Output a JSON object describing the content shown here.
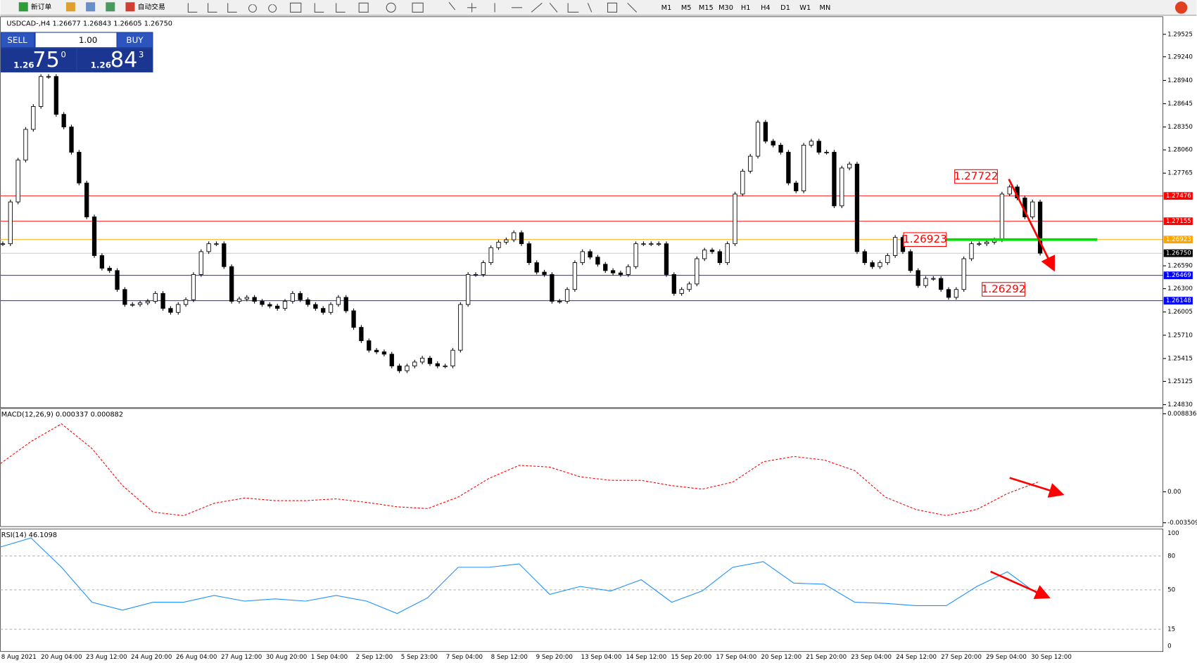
{
  "toolbar": {
    "new_order": "新订单",
    "auto_trade": "自动交易",
    "timeframes": [
      "M1",
      "M5",
      "M15",
      "M30",
      "H1",
      "H4",
      "D1",
      "W1",
      "MN"
    ]
  },
  "trade_panel": {
    "sell": "SELL",
    "lot": "1.00",
    "buy": "BUY",
    "sell_price": {
      "prefix": "1.26",
      "big": "75",
      "sup": "0"
    },
    "buy_price": {
      "prefix": "1.26",
      "big": "84",
      "sup": "3"
    }
  },
  "chart": {
    "header": "USDCAD-,H4  1.26677 1.26843 1.26605 1.26750",
    "price_ticks": [
      1.29525,
      {
        "value": 1.2924,
        "label": "1.29240"
      },
      {
        "value": 1.2894,
        "label": "1.28940"
      },
      1.28645,
      {
        "value": 1.2835,
        "label": "1.28350"
      },
      {
        "value": 1.2806,
        "label": "1.28060"
      },
      1.27765,
      {
        "value": 1.2659,
        "label": "1.26590"
      },
      {
        "value": 1.263,
        "label": "1.26300"
      },
      1.26005,
      {
        "value": 1.2571,
        "label": "1.25710"
      },
      1.25415,
      1.25125,
      {
        "value": 1.2483,
        "label": "1.24830"
      }
    ],
    "levels": [
      {
        "value": 1.27476,
        "color": "#ff0000"
      },
      {
        "value": 1.27155,
        "color": "#ff0000"
      },
      {
        "value": 1.26923,
        "color": "#ffa500"
      },
      {
        "value": 1.2675,
        "label": "1.26750",
        "color": "#000000"
      },
      {
        "value": 1.26469,
        "color": "#0000ff"
      },
      {
        "value": 1.26148,
        "color": "#0000ff"
      }
    ],
    "annotations": [
      1.27722,
      1.26923,
      1.26292
    ],
    "closes": [
      1.2687,
      1.274,
      1.2793,
      1.2832,
      1.2861,
      1.2899,
      1.2899,
      1.2851,
      1.2835,
      1.2803,
      1.2764,
      1.2721,
      1.2672,
      1.2656,
      1.2653,
      1.2629,
      1.261,
      1.261,
      1.2612,
      1.2614,
      1.2624,
      1.2605,
      1.26,
      1.261,
      1.2616,
      1.2648,
      1.2677,
      1.2687,
      1.2687,
      1.2658,
      1.2614,
      1.2617,
      1.2619,
      1.2614,
      1.261,
      1.2608,
      1.2605,
      1.2614,
      1.2624,
      1.2616,
      1.261,
      1.2605,
      1.26,
      1.261,
      1.2619,
      1.2602,
      1.2581,
      1.2564,
      1.2552,
      1.255,
      1.2547,
      1.2532,
      1.2526,
      1.2532,
      1.2537,
      1.2542,
      1.2535,
      1.2532,
      1.2532,
      1.2552,
      1.261,
      1.2648,
      1.2648,
      1.2663,
      1.2682,
      1.2689,
      1.2692,
      1.2701,
      1.2687,
      1.2663,
      1.2651,
      1.2648,
      1.2614,
      1.2614,
      1.2629,
      1.2663,
      1.2677,
      1.267,
      1.2661,
      1.2653,
      1.265,
      1.2648,
      1.2658,
      1.2687,
      1.2687,
      1.2687,
      1.2687,
      1.2648,
      1.2624,
      1.2629,
      1.2636,
      1.2668,
      1.2679,
      1.2677,
      1.2663,
      1.2687,
      1.275,
      1.2779,
      1.2798,
      1.2841,
      1.2817,
      1.2812,
      1.2803,
      1.2764,
      1.2754,
      1.2812,
      1.2817,
      1.2803,
      1.2803,
      1.2735,
      1.2783,
      1.2788,
      1.2677,
      1.2663,
      1.2658,
      1.2663,
      1.2672,
      1.2695,
      1.2677,
      1.2653,
      1.2634,
      1.2643,
      1.2643,
      1.2629,
      1.2619,
      1.2629,
      1.2668,
      1.2687,
      1.2687,
      1.2689,
      1.2692,
      1.275,
      1.2759,
      1.2745,
      1.2721,
      1.274,
      1.2675
    ],
    "time_labels": [
      "8 Aug 2021",
      "20 Aug 04:00",
      "23 Aug 12:00",
      "24 Aug 20:00",
      "26 Aug 04:00",
      "27 Aug 12:00",
      "30 Aug 20:00",
      "1 Sep 04:00",
      "2 Sep 12:00",
      "5 Sep 23:00",
      "7 Sep 04:00",
      "8 Sep 12:00",
      "9 Sep 20:00",
      "13 Sep 04:00",
      "14 Sep 12:00",
      "15 Sep 20:00",
      "17 Sep 04:00",
      "20 Sep 12:00",
      "21 Sep 20:00",
      "23 Sep 04:00",
      "24 Sep 12:00",
      "27 Sep 20:00",
      "29 Sep 04:00",
      "30 Sep 12:00"
    ]
  },
  "macd": {
    "header": "MACD(12,26,9) 0.000337 0.000882",
    "ticks": [
      0.008836,
      {
        "value": 0,
        "label": "0.00"
      },
      -0.003509
    ],
    "signal": [
      0.0032,
      0.0057,
      0.0077,
      0.0049,
      0.0007,
      -0.0023,
      -0.0027,
      -0.0013,
      -0.0007,
      -0.001,
      -0.001,
      -0.0008,
      -0.0012,
      -0.0017,
      -0.0019,
      -0.0006,
      0.0015,
      0.003,
      0.0028,
      0.0017,
      0.0013,
      0.0013,
      0.0007,
      0.0003,
      0.0011,
      0.0034,
      0.004,
      0.0036,
      0.0024,
      -0.0006,
      -0.002,
      -0.0027,
      -0.002,
      -0.0002,
      0.0011
    ]
  },
  "rsi": {
    "header": "RSI(14) 46.1098",
    "ticks": [
      100,
      80,
      50,
      15,
      0
    ],
    "values": [
      88,
      96,
      70,
      39,
      32,
      39,
      39,
      45,
      40,
      42,
      40,
      45,
      40,
      29,
      43,
      70,
      70,
      73,
      46,
      53,
      49,
      59,
      39,
      49,
      70,
      75,
      56,
      55,
      39,
      38,
      36,
      36,
      53,
      66,
      46
    ]
  }
}
